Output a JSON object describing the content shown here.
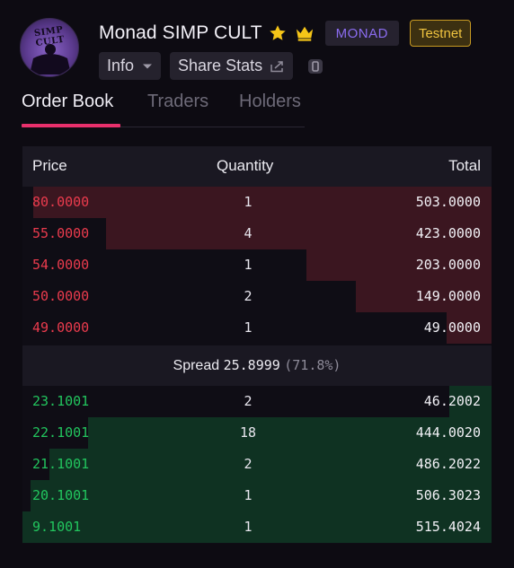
{
  "token": {
    "name": "Monad SIMP CULT",
    "avatar_text": "SIMP CULT",
    "network_badge": "MONAD",
    "env_badge": "Testnet"
  },
  "toolbar": {
    "info_label": "Info",
    "share_label": "Share Stats"
  },
  "tabs": [
    {
      "label": "Order Book",
      "active": true
    },
    {
      "label": "Traders",
      "active": false
    },
    {
      "label": "Holders",
      "active": false
    }
  ],
  "order_book": {
    "columns": {
      "price": "Price",
      "quantity": "Quantity",
      "total": "Total"
    },
    "asks": [
      {
        "price": "80.0000",
        "quantity": "1",
        "total": "503.0000",
        "depth": 0.977
      },
      {
        "price": "55.0000",
        "quantity": "4",
        "total": "423.0000",
        "depth": 0.821
      },
      {
        "price": "54.0000",
        "quantity": "1",
        "total": "203.0000",
        "depth": 0.394
      },
      {
        "price": "50.0000",
        "quantity": "2",
        "total": "149.0000",
        "depth": 0.289
      },
      {
        "price": "49.0000",
        "quantity": "1",
        "total": "49.0000",
        "depth": 0.095
      }
    ],
    "spread": {
      "label": "Spread",
      "value": "25.8999",
      "percent": "(71.8%)"
    },
    "bids": [
      {
        "price": "23.1001",
        "quantity": "2",
        "total": "46.2002",
        "depth": 0.09
      },
      {
        "price": "22.1001",
        "quantity": "18",
        "total": "444.0020",
        "depth": 0.861
      },
      {
        "price": "21.1001",
        "quantity": "2",
        "total": "486.2022",
        "depth": 0.943
      },
      {
        "price": "20.1001",
        "quantity": "1",
        "total": "506.3023",
        "depth": 0.982
      },
      {
        "price": "9.1001",
        "quantity": "1",
        "total": "515.4024",
        "depth": 1.0
      }
    ]
  },
  "colors": {
    "accent": "#e8306c",
    "ask": "#ea3b4d",
    "bid": "#22c55e",
    "badge_monad": "#8b6cf0",
    "badge_testnet": "#f0c440"
  },
  "icons": [
    "star-icon",
    "crown-icon",
    "chevron-down-icon",
    "external-link-icon",
    "info-square-icon"
  ]
}
